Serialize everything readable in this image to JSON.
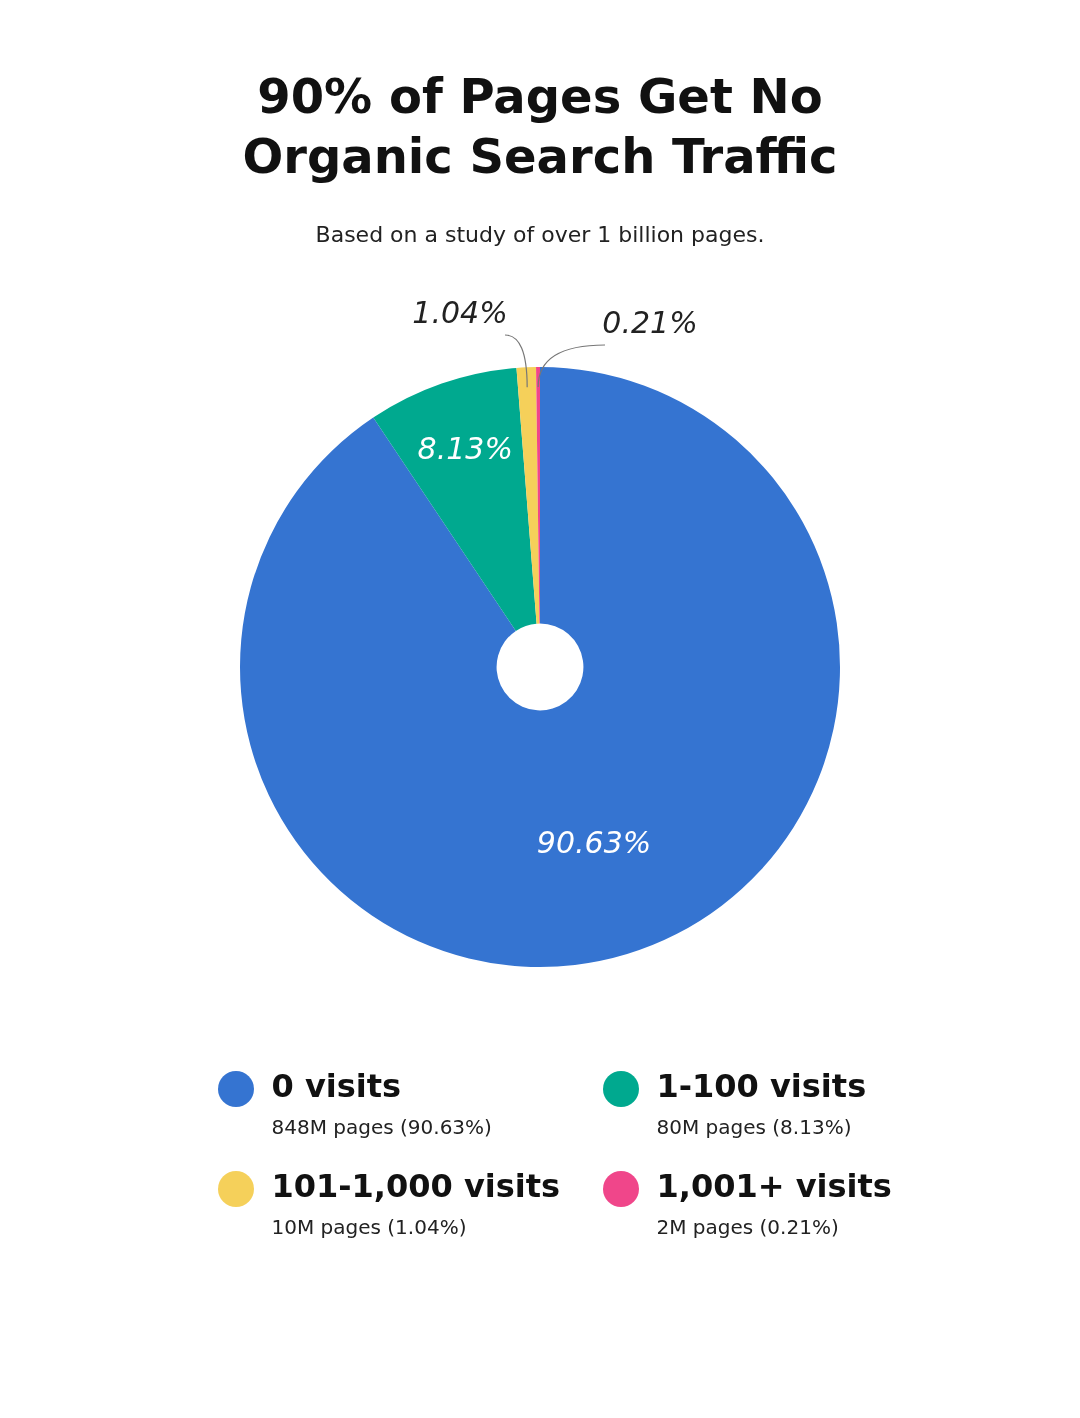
{
  "chart_data": {
    "type": "donut",
    "title": "90% of Pages Get No Organic Search Traffic",
    "subtitle": "Based on a study of over 1 billion pages.",
    "categories": [
      "0 visits",
      "1-100 visits",
      "101-1,000 visits",
      "1,001+ visits"
    ],
    "values": [
      90.63,
      8.13,
      1.04,
      0.21
    ],
    "colors": [
      "#3574d1",
      "#00a98f",
      "#f5d05a",
      "#f0468a"
    ],
    "value_labels": [
      "90.63%",
      "8.13%",
      "1.04%",
      "0.21%"
    ],
    "legend": "bottom",
    "annotations": [
      "848M pages (90.63%)",
      "80M pages (8.13%)",
      "10M pages (1.04%)",
      "2M pages (0.21%)"
    ]
  }
}
